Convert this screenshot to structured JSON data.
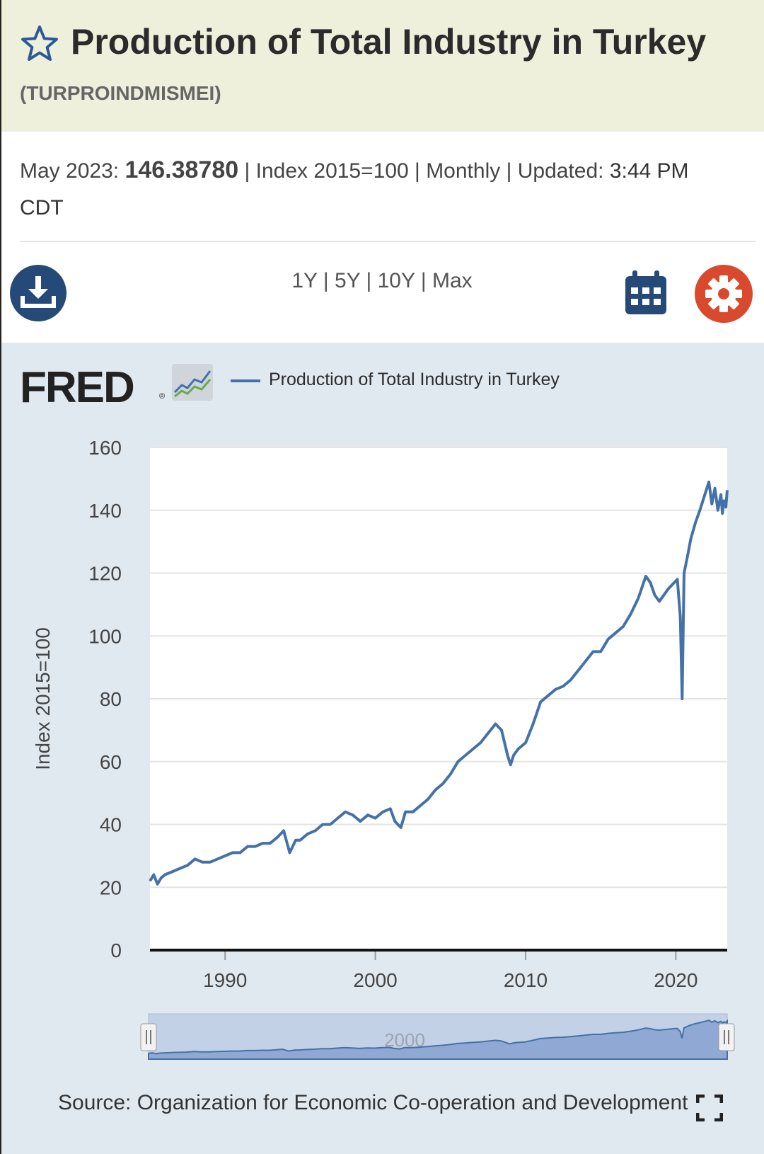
{
  "header": {
    "title": "Production of Total Industry in Turkey",
    "series_id": "(TURPROINDMISMEI)"
  },
  "meta": {
    "date_label": "May 2023:",
    "value": "146.38780",
    "units": "Index 2015=100",
    "frequency": "Monthly",
    "updated_label": "Updated:",
    "updated_time": "3:44 PM",
    "timezone": "CDT",
    "separator": "|"
  },
  "toolbar": {
    "ranges": [
      "1Y",
      "5Y",
      "10Y",
      "Max"
    ],
    "download_icon": "download-icon",
    "calendar_icon": "calendar-icon",
    "settings_icon": "gear-icon"
  },
  "logo": {
    "text": "FRED",
    "registered": "®"
  },
  "source_text": "Source: Organization for Economic Co-operation and Development",
  "colors": {
    "series": "#4472a8",
    "header_bg": "#eef0dc",
    "chart_bg": "#e1e9f0",
    "download_btn": "#264a78",
    "settings_btn": "#d9492e",
    "navigator_fill": "#b7c7e3"
  },
  "chart_data": {
    "type": "line",
    "title": "",
    "xlabel": "",
    "ylabel": "Index 2015=100",
    "ylim": [
      0,
      160
    ],
    "yticks": [
      0,
      20,
      40,
      60,
      80,
      100,
      120,
      140,
      160
    ],
    "xlim": [
      1985.0,
      2023.42
    ],
    "xticks": [
      1990,
      2000,
      2010,
      2020
    ],
    "navigator_label": "2000",
    "grid": true,
    "legend_position": "top-left",
    "series": [
      {
        "name": "Production of Total Industry in Turkey",
        "x": [
          1985.0,
          1985.25,
          1985.5,
          1985.75,
          1986.0,
          1986.5,
          1987.0,
          1987.5,
          1988.0,
          1988.5,
          1989.0,
          1989.5,
          1990.0,
          1990.5,
          1991.0,
          1991.5,
          1992.0,
          1992.5,
          1993.0,
          1993.5,
          1993.9,
          1994.3,
          1994.7,
          1995.0,
          1995.5,
          1996.0,
          1996.5,
          1997.0,
          1997.5,
          1998.0,
          1998.5,
          1999.0,
          1999.5,
          2000.0,
          2000.5,
          2001.0,
          2001.3,
          2001.7,
          2002.0,
          2002.5,
          2003.0,
          2003.5,
          2004.0,
          2004.5,
          2005.0,
          2005.5,
          2006.0,
          2006.5,
          2007.0,
          2007.5,
          2008.0,
          2008.4,
          2008.8,
          2009.0,
          2009.2,
          2009.5,
          2010.0,
          2010.5,
          2011.0,
          2011.5,
          2012.0,
          2012.5,
          2013.0,
          2013.5,
          2014.0,
          2014.5,
          2015.0,
          2015.5,
          2016.0,
          2016.5,
          2017.0,
          2017.5,
          2018.0,
          2018.3,
          2018.6,
          2018.9,
          2019.2,
          2019.5,
          2019.9,
          2020.1,
          2020.3,
          2020.42,
          2020.55,
          2020.8,
          2021.0,
          2021.3,
          2021.6,
          2022.0,
          2022.2,
          2022.4,
          2022.6,
          2022.8,
          2023.0,
          2023.1,
          2023.2,
          2023.33,
          2023.42
        ],
        "values": [
          22,
          24,
          21,
          23,
          24,
          25,
          26,
          27,
          29,
          28,
          28,
          29,
          30,
          31,
          31,
          33,
          33,
          34,
          34,
          36,
          38,
          31,
          35,
          35,
          37,
          38,
          40,
          40,
          42,
          44,
          43,
          41,
          43,
          42,
          44,
          45,
          41,
          39,
          44,
          44,
          46,
          48,
          51,
          53,
          56,
          60,
          62,
          64,
          66,
          69,
          72,
          70,
          62,
          59,
          62,
          64,
          66,
          72,
          79,
          81,
          83,
          84,
          86,
          89,
          92,
          95,
          95,
          99,
          101,
          103,
          107,
          112,
          119,
          117,
          113,
          111,
          113,
          115,
          117,
          118,
          106,
          80,
          120,
          126,
          131,
          136,
          140,
          146,
          149,
          142,
          147,
          140,
          145,
          139,
          143,
          141,
          146.3878
        ]
      }
    ]
  }
}
